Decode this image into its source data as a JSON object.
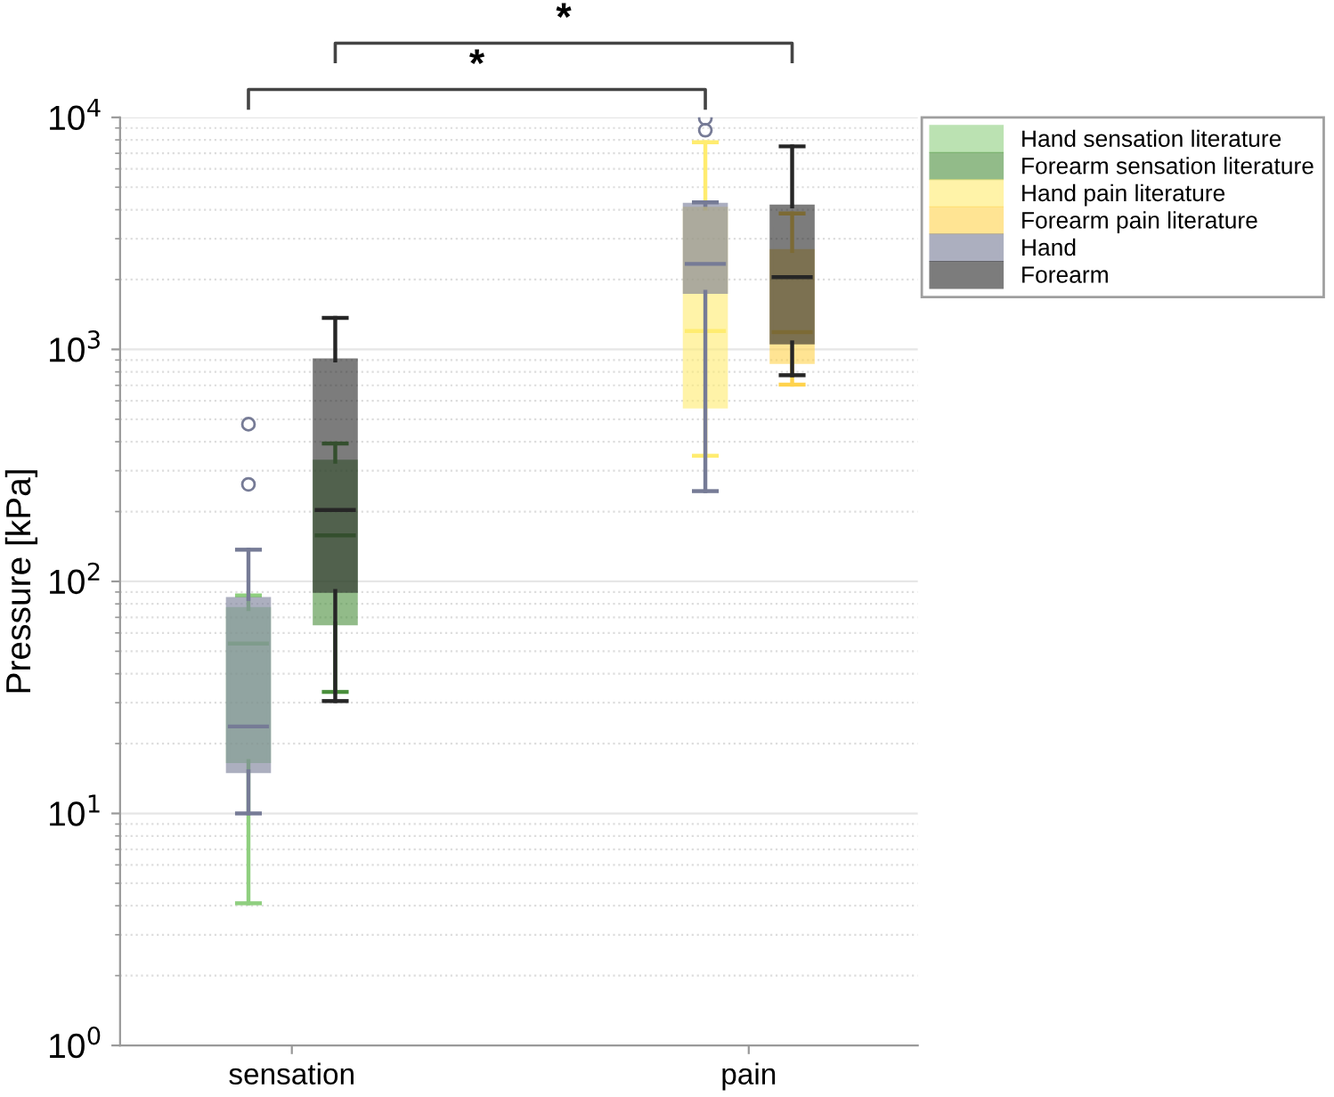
{
  "chart_data": {
    "type": "box",
    "ylabel": "Pressure [kPa]",
    "categories": [
      "sensation",
      "pain"
    ],
    "log": "y",
    "ylim": [
      1,
      10000
    ],
    "yticks": [
      {
        "value": 1,
        "label": "10$^{0}$"
      },
      {
        "value": 10,
        "label": "10$^{1}$"
      },
      {
        "value": 100,
        "label": "10$^{2}$"
      },
      {
        "value": 1000,
        "label": "10$^{3}$"
      },
      {
        "value": 10000,
        "label": "10$^{4}$"
      }
    ],
    "grid": "y",
    "legend": "top right",
    "annotations": [
      "*",
      "*"
    ],
    "series": [
      {
        "name": "Hand sensation literature",
        "color": "#8fcf7f",
        "boxes": [
          {
            "low": 4.1,
            "q1": 16.8,
            "median": 54,
            "q3": 76,
            "high": 87
          },
          null
        ]
      },
      {
        "name": "Forearm sensation literature",
        "color": "#4a8f3c",
        "boxes": [
          {
            "low": 33.4,
            "q1": 66,
            "median": 158,
            "q3": 328,
            "high": 393
          },
          null
        ]
      },
      {
        "name": "Hand pain literature",
        "color": "#ffec70",
        "boxes": [
          null,
          {
            "low": 348,
            "q1": 567,
            "median": 1200,
            "q3": 4040,
            "high": 7810
          }
        ]
      },
      {
        "name": "Forearm pain literature",
        "color": "#ffd34d",
        "boxes": [
          null,
          {
            "low": 705,
            "q1": 883,
            "median": 1186,
            "q3": 2655,
            "high": 3850
          }
        ]
      },
      {
        "name": "Hand",
        "color": "#767b96",
        "boxes": [
          {
            "low": 10,
            "q1": 15.2,
            "median": 23.7,
            "q3": 84,
            "high": 137,
            "outliers": [
              262,
              476
            ]
          },
          {
            "low": 245,
            "q1": 1770,
            "median": 2336,
            "q3": 4200,
            "high": 4300,
            "outliers": [
              8800,
              9900
            ]
          }
        ]
      },
      {
        "name": "Forearm",
        "color": "#262626",
        "boxes": [
          {
            "low": 30.5,
            "q1": 91,
            "median": 203,
            "q3": 896,
            "high": 1367
          },
          {
            "low": 774,
            "q1": 1072,
            "median": 2048,
            "q3": 4130,
            "high": 7500
          }
        ]
      }
    ]
  }
}
